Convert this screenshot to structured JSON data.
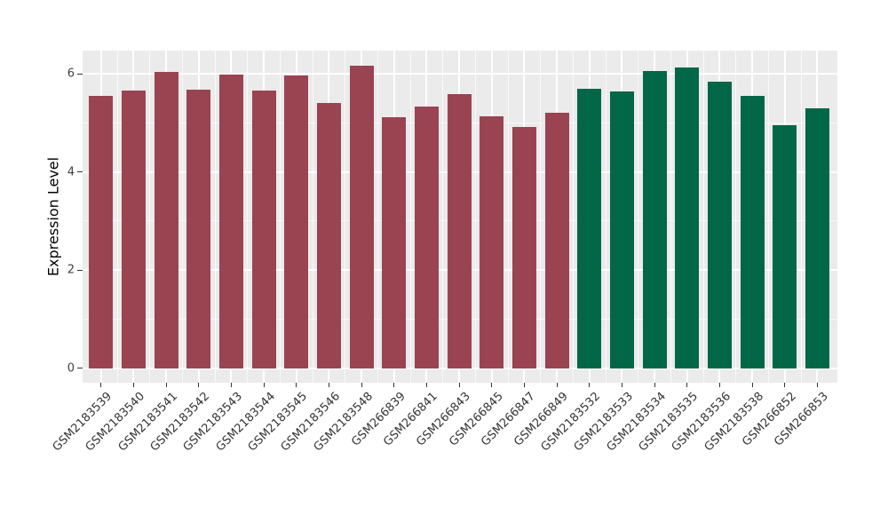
{
  "chart_data": {
    "type": "bar",
    "title": "",
    "xlabel": "",
    "ylabel": "Expression Level",
    "ylim": [
      -0.29,
      6.47
    ],
    "yticks": [
      0,
      2,
      4,
      6
    ],
    "yticks_minor": [
      1,
      3,
      5
    ],
    "grid": "major and minor white gridlines on grey panel",
    "legend": false,
    "panel_bg": "#EBEBEB",
    "grid_color": "#FFFFFF",
    "group_colors": {
      "group1": "#9A4351",
      "group2": "#026747"
    },
    "categories": [
      "GSM2183539",
      "GSM2183540",
      "GSM2183541",
      "GSM2183542",
      "GSM2183543",
      "GSM2183544",
      "GSM2183545",
      "GSM2183546",
      "GSM2183548",
      "GSM266839",
      "GSM266841",
      "GSM266843",
      "GSM266845",
      "GSM266847",
      "GSM266849",
      "GSM2183532",
      "GSM2183533",
      "GSM2183534",
      "GSM2183535",
      "GSM2183536",
      "GSM2183538",
      "GSM266852",
      "GSM266853"
    ],
    "values": [
      5.55,
      5.65,
      6.04,
      5.67,
      5.99,
      5.66,
      5.97,
      5.41,
      6.17,
      5.12,
      5.33,
      5.58,
      5.13,
      4.92,
      5.21,
      5.69,
      5.63,
      6.06,
      6.12,
      5.83,
      5.55,
      4.96,
      5.3
    ],
    "bar_group": [
      "group1",
      "group1",
      "group1",
      "group1",
      "group1",
      "group1",
      "group1",
      "group1",
      "group1",
      "group1",
      "group1",
      "group1",
      "group1",
      "group1",
      "group1",
      "group2",
      "group2",
      "group2",
      "group2",
      "group2",
      "group2",
      "group2",
      "group2"
    ]
  }
}
